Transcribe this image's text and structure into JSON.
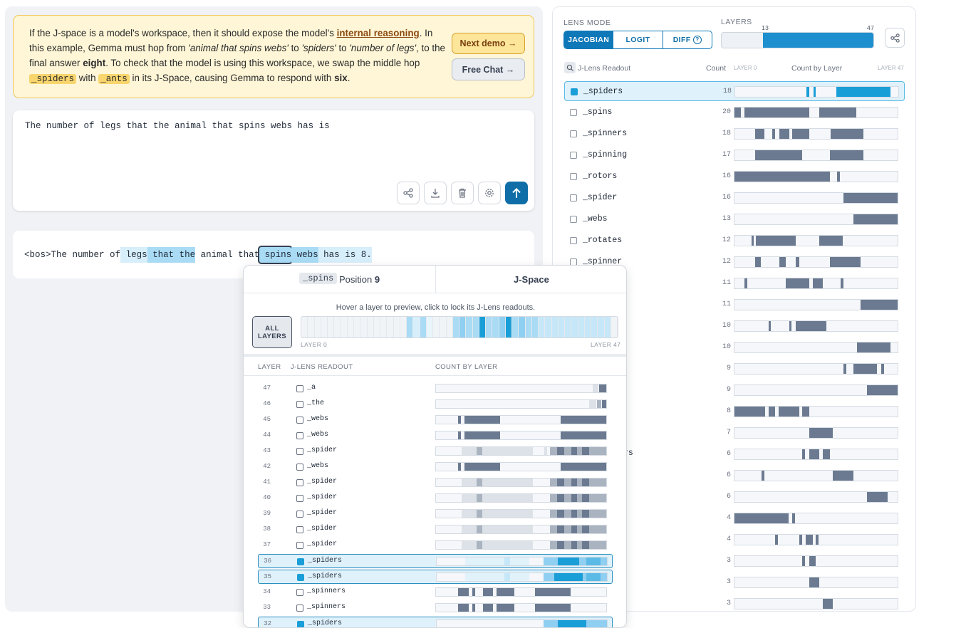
{
  "banner": {
    "p1": "If the J-space is a model's workspace, then it should expose the model's ",
    "link": "internal reasoning",
    "p2": ". In this example, Gemma must hop from ",
    "i1": "'animal that spins webs'",
    "p3": " to ",
    "i2": "'spiders'",
    "p4": " to ",
    "i3": "'number of legs'",
    "p5": ", to the final answer ",
    "b1": "eight",
    "p6": ". To check that the model is using this workspace, we swap the middle hop ",
    "tk1": "_spiders",
    "p7": " with ",
    "tk2": "_ants",
    "p8": " in its J-Space, causing Gemma to respond with ",
    "b2": "six",
    "p9": ".",
    "next_label": "Next demo",
    "free_label": "Free Chat",
    "arrow": "→"
  },
  "prompt": {
    "text": "The number of legs that the animal that spins webs has is"
  },
  "tokens": [
    "<bos>",
    "The",
    " number",
    " of",
    " legs",
    " that",
    " the",
    " animal",
    " that",
    " spins",
    " webs",
    " has",
    " is",
    " 8",
    "."
  ],
  "right": {
    "lens_mode_label": "LENS MODE",
    "layers_label": "LAYERS",
    "modes": [
      "JACOBIAN",
      "LOGIT",
      "DIFF"
    ],
    "diff_help": "?",
    "range_start": "13",
    "range_end": "47",
    "col_readout": "J-Lens Readout",
    "col_count": "Count",
    "col_layer0": "LAYER 0",
    "col_bylayer": "Count by Layer",
    "col_layer47": "LAYER 47",
    "partial_name": "rs",
    "rows": [
      {
        "name": "_spiders",
        "count": "18"
      },
      {
        "name": "_spins",
        "count": "20"
      },
      {
        "name": "_spinners",
        "count": "18"
      },
      {
        "name": "_spinning",
        "count": "17"
      },
      {
        "name": "_rotors",
        "count": "16"
      },
      {
        "name": "_spider",
        "count": "16"
      },
      {
        "name": "_webs",
        "count": "13"
      },
      {
        "name": "_rotates",
        "count": "12"
      },
      {
        "name": "_spinner",
        "count": "12"
      },
      {
        "name": "",
        "count": "11"
      },
      {
        "name": "",
        "count": "11"
      },
      {
        "name": "",
        "count": "10"
      },
      {
        "name": "",
        "count": "10"
      },
      {
        "name": "",
        "count": "9"
      },
      {
        "name": "",
        "count": "9"
      },
      {
        "name": "",
        "count": "8"
      },
      {
        "name": "",
        "count": "7"
      },
      {
        "name": "",
        "count": "6"
      },
      {
        "name": "",
        "count": "6"
      },
      {
        "name": "",
        "count": "6"
      },
      {
        "name": "",
        "count": "4"
      },
      {
        "name": "",
        "count": "4"
      },
      {
        "name": "",
        "count": "3"
      },
      {
        "name": "",
        "count": "3"
      },
      {
        "name": "",
        "count": "3"
      }
    ]
  },
  "popup": {
    "token": "_spins",
    "position_label": "Position",
    "position": "9",
    "jspace_label": "J-Space",
    "hint": "Hover a layer to preview, click to lock its J-Lens readouts.",
    "all_layers": "ALL LAYERS",
    "layer0": "LAYER 0",
    "layer47": "LAYER 47",
    "col_layer": "LAYER",
    "col_readout": "J-LENS READOUT",
    "col_count": "COUNT BY LAYER",
    "rows": [
      {
        "layer": "47",
        "name": "_a"
      },
      {
        "layer": "46",
        "name": "_the"
      },
      {
        "layer": "45",
        "name": "_webs"
      },
      {
        "layer": "44",
        "name": "_webs"
      },
      {
        "layer": "43",
        "name": "_spider"
      },
      {
        "layer": "42",
        "name": "_webs"
      },
      {
        "layer": "41",
        "name": "_spider"
      },
      {
        "layer": "40",
        "name": "_spider"
      },
      {
        "layer": "39",
        "name": "_spider"
      },
      {
        "layer": "38",
        "name": "_spider"
      },
      {
        "layer": "37",
        "name": "_spider"
      },
      {
        "layer": "36",
        "name": "_spiders"
      },
      {
        "layer": "35",
        "name": "_spiders"
      },
      {
        "layer": "34",
        "name": "_spinners"
      },
      {
        "layer": "33",
        "name": "_spinners"
      },
      {
        "layer": "32",
        "name": "_spiders"
      }
    ]
  },
  "colors": {
    "accent": "#0f78b8",
    "bar": "#6b7a90",
    "highlight": "#1a9ed8"
  }
}
